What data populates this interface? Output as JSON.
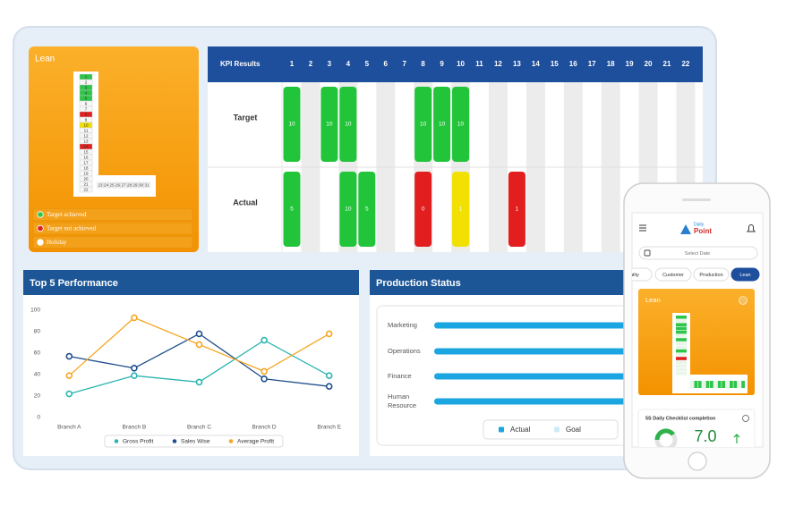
{
  "lean_card": {
    "title": "Lean",
    "vertical_days": [
      1,
      2,
      3,
      4,
      5,
      6,
      7,
      8,
      9,
      10,
      11,
      12,
      13,
      14,
      15,
      16,
      17,
      18,
      19,
      20,
      21,
      22
    ],
    "horizontal_days": [
      23,
      24,
      25,
      26,
      27,
      28,
      29,
      30,
      31
    ],
    "highlights": [
      {
        "day": 1,
        "color": "#2fc44a"
      },
      {
        "day": 3,
        "color": "#2fc44a"
      },
      {
        "day": 4,
        "color": "#2fc44a"
      },
      {
        "day": 5,
        "color": "#2fc44a"
      },
      {
        "day": 8,
        "color": "#e02020"
      },
      {
        "day": 10,
        "color": "#f2e000"
      },
      {
        "day": 14,
        "color": "#e02020"
      }
    ],
    "legend": [
      {
        "label": "Target achieved",
        "color": "#2fc44a"
      },
      {
        "label": "Target not achieved",
        "color": "#e02020"
      },
      {
        "label": "Holiday",
        "color": "#ffffff"
      }
    ]
  },
  "kpi_table": {
    "header": "KPI Results",
    "days": [
      1,
      2,
      3,
      4,
      5,
      6,
      7,
      8,
      9,
      10,
      11,
      12,
      13,
      14,
      15,
      16,
      17,
      18,
      19,
      20,
      21,
      22
    ],
    "rows": [
      {
        "label": "Target",
        "cells": [
          {
            "day": 1,
            "value": 10,
            "color": "#22c43a"
          },
          {
            "day": 3,
            "value": 10,
            "color": "#22c43a"
          },
          {
            "day": 4,
            "value": 10,
            "color": "#22c43a"
          },
          {
            "day": 8,
            "value": 10,
            "color": "#22c43a"
          },
          {
            "day": 9,
            "value": 10,
            "color": "#22c43a"
          },
          {
            "day": 10,
            "value": 10,
            "color": "#22c43a"
          }
        ]
      },
      {
        "label": "Actual",
        "cells": [
          {
            "day": 1,
            "value": 5,
            "color": "#22c43a"
          },
          {
            "day": 4,
            "value": 10,
            "color": "#22c43a"
          },
          {
            "day": 5,
            "value": 5,
            "color": "#22c43a"
          },
          {
            "day": 8,
            "value": 0,
            "color": "#e31e1e"
          },
          {
            "day": 10,
            "value": 1,
            "color": "#f2e000"
          },
          {
            "day": 13,
            "value": 1,
            "color": "#e31e1e"
          }
        ]
      }
    ]
  },
  "chart_data": [
    {
      "type": "line",
      "title": "Top 5 Performance",
      "categories": [
        "Branch A",
        "Branch B",
        "Branch C",
        "Branch D",
        "Branch E"
      ],
      "ylim": [
        0,
        100
      ],
      "yticks": [
        0,
        20,
        40,
        60,
        80,
        100
      ],
      "grid": false,
      "legend": "bottom",
      "series": [
        {
          "name": "Gross Profit",
          "color": "#2bb5b0",
          "values": [
            22,
            39,
            33,
            72,
            39
          ]
        },
        {
          "name": "Sales Wise",
          "color": "#1f4e8c",
          "values": [
            57,
            46,
            78,
            36,
            29
          ]
        },
        {
          "name": "Average Profit",
          "color": "#f5a623",
          "values": [
            39,
            93,
            68,
            43,
            78
          ]
        }
      ]
    },
    {
      "type": "bar",
      "orientation": "horizontal",
      "title": "Production Status",
      "categories": [
        "Marketing",
        "Operations",
        "Finance",
        "Human Resource"
      ],
      "xlim": [
        0,
        100
      ],
      "legend": "bottom",
      "series": [
        {
          "name": "Actual",
          "color": "#1ba6e2",
          "values": [
            100,
            100,
            100,
            100
          ]
        },
        {
          "name": "Goal",
          "color": "#cfeaf5",
          "values": [
            100,
            100,
            100,
            100
          ]
        }
      ]
    }
  ],
  "phone": {
    "logo_small": "Daily",
    "logo": "Point",
    "date_placeholder": "Select Date",
    "tabs": [
      "ality",
      "Customer",
      "Production",
      "Lean"
    ],
    "active_tab": 3,
    "card_title": "Lean",
    "checklist_title": "5S Daily Checklist completion",
    "checklist_value": {
      "value": 7,
      "label": "7.0"
    }
  }
}
